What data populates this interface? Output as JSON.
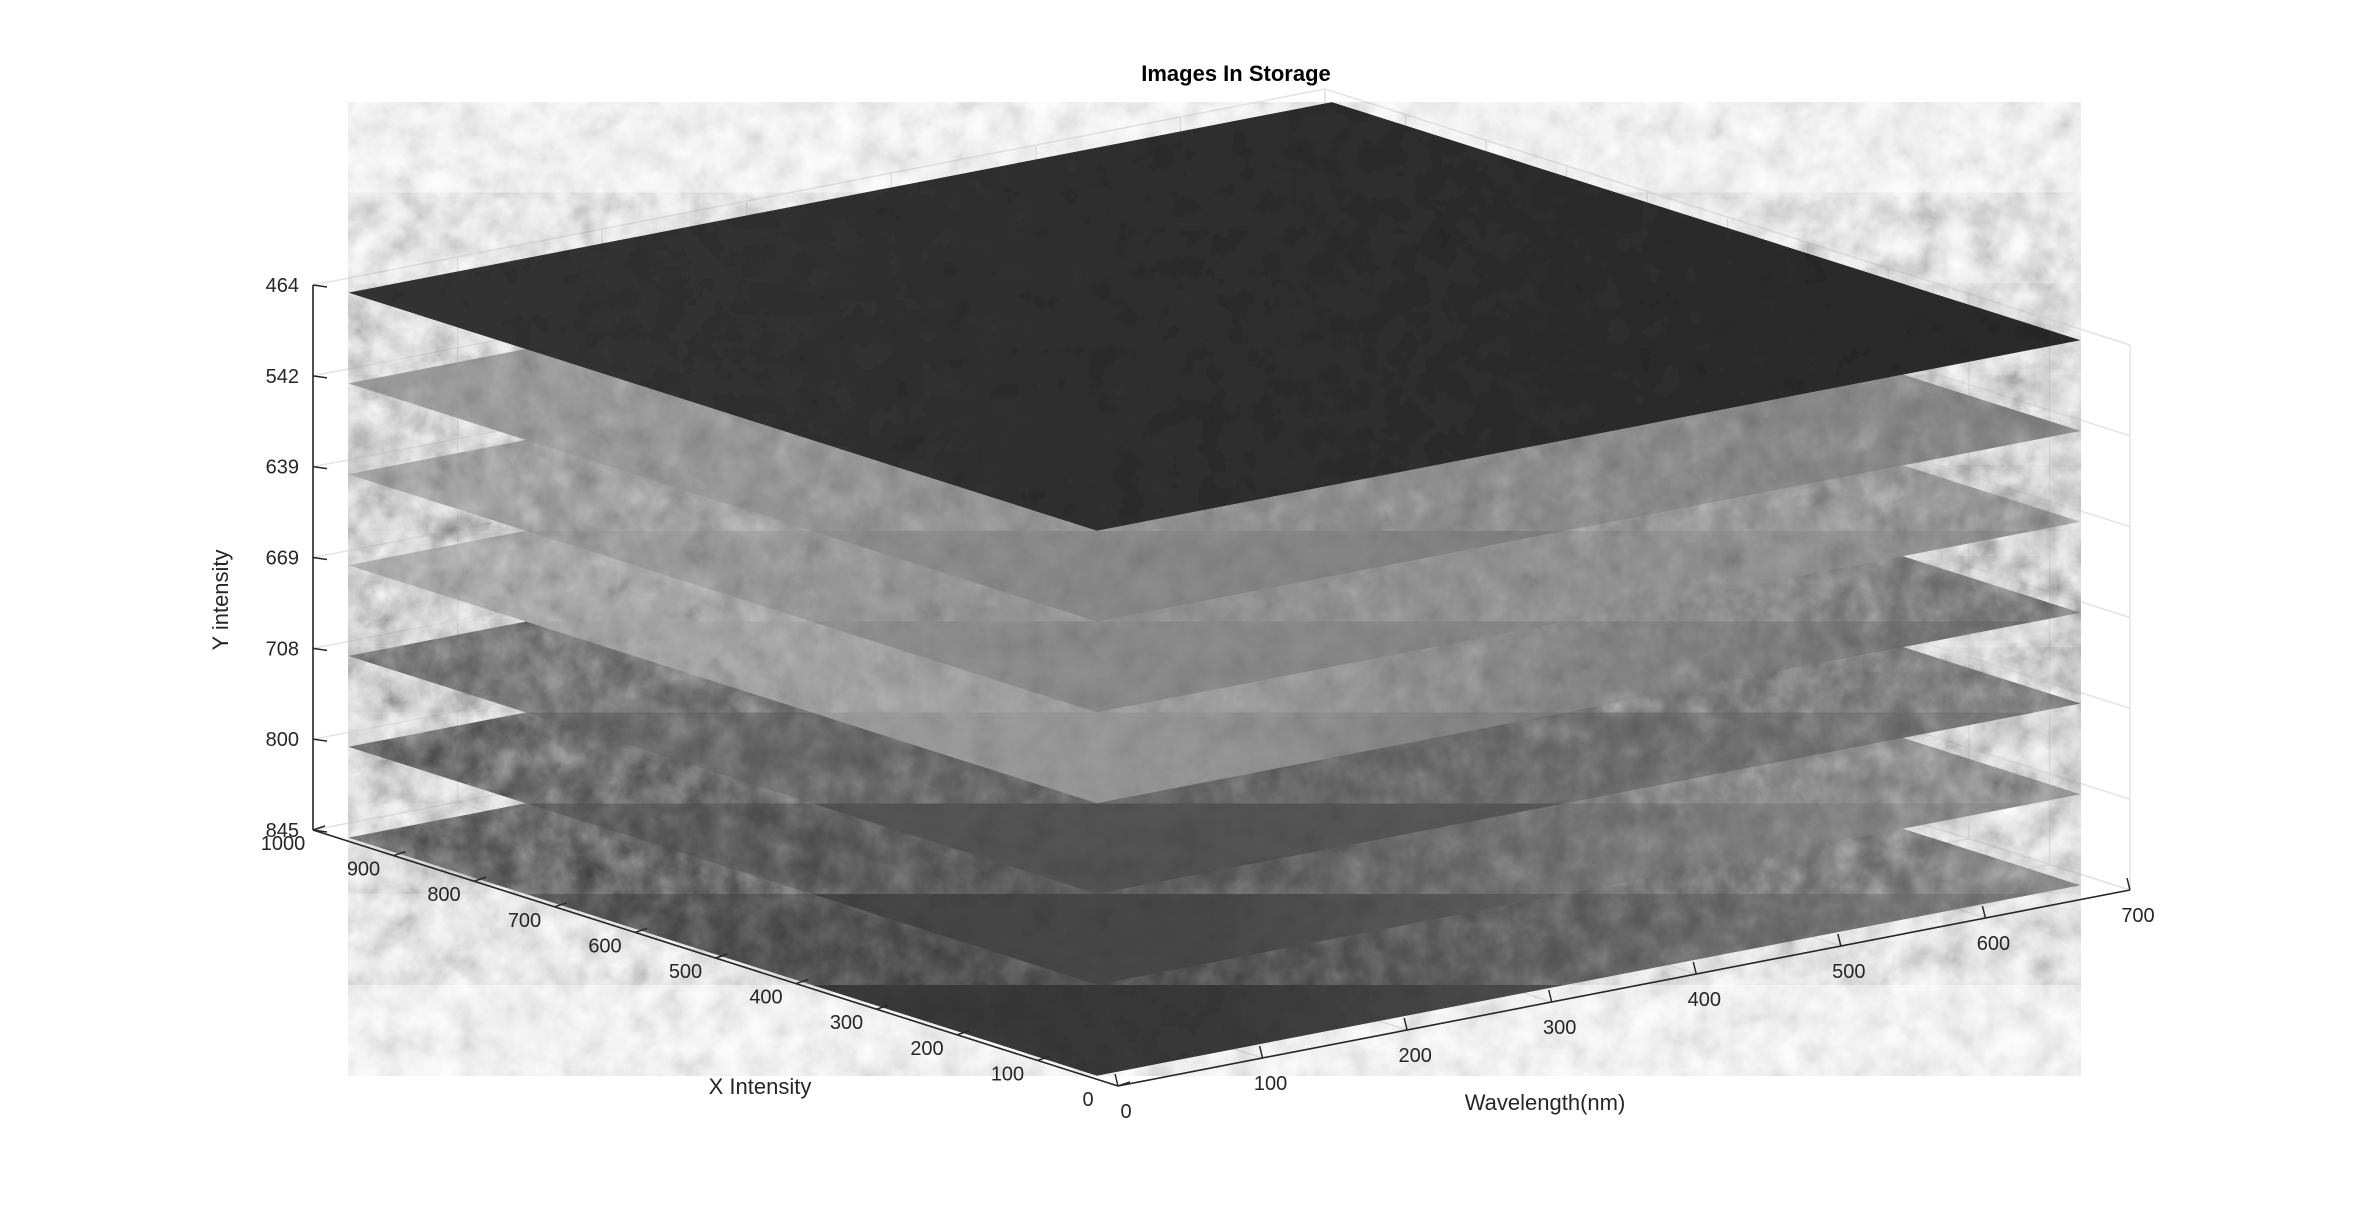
{
  "chart_data": {
    "type": "other",
    "title": "Images In Storage",
    "xlabel": "Wavelength(nm)",
    "ylabel": "X Intensity",
    "zlabel": "Y intensity",
    "x_ticks": [
      "0",
      "100",
      "200",
      "300",
      "400",
      "500",
      "600",
      "700"
    ],
    "y_ticks": [
      "0",
      "100",
      "200",
      "300",
      "400",
      "500",
      "600",
      "700",
      "800",
      "900",
      "1000"
    ],
    "z_ticks": [
      "464",
      "542",
      "639",
      "669",
      "708",
      "800",
      "845"
    ],
    "xlim": [
      0,
      700
    ],
    "ylim": [
      0,
      1000
    ],
    "grid": true,
    "colormap": "gray",
    "layers": [
      {
        "z_label": "464",
        "tone": "#303030",
        "left_tone": "#353535",
        "right_tone": "#2c2c2c"
      },
      {
        "z_label": "542",
        "tone": "#8c8c8c",
        "left_tone": "#9a9a9a",
        "right_tone": "#7a7a7a"
      },
      {
        "z_label": "639",
        "tone": "#8e8e8e",
        "left_tone": "#9c9c9c",
        "right_tone": "#888888"
      },
      {
        "z_label": "669",
        "tone": "#9a9a9a",
        "left_tone": "#aaaaaa",
        "right_tone": "#5a5a5a"
      },
      {
        "z_label": "708",
        "tone": "#555555",
        "left_tone": "#5a5a5a",
        "right_tone": "#6a6a6a"
      },
      {
        "z_label": "800",
        "tone": "#4a4a4a",
        "left_tone": "#444444",
        "right_tone": "#8a8a8a"
      },
      {
        "z_label": "845",
        "tone": "#3a3a3a",
        "left_tone": "#3c3c3c",
        "right_tone": "#707070"
      }
    ]
  }
}
